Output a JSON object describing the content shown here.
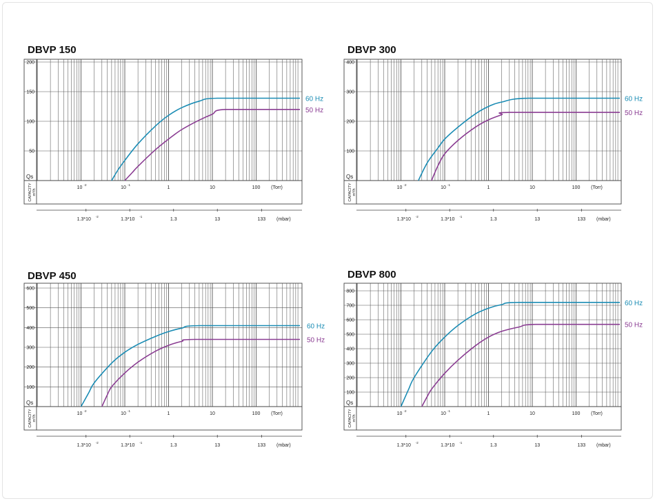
{
  "colors": {
    "hz60": "#1a8cb4",
    "hz50": "#8a3c92",
    "grid": "#555555",
    "frame": "#444444",
    "text": "#222222"
  },
  "chart_data": [
    {
      "type": "line",
      "title": "DBVP 150",
      "ylabel": "Qs",
      "capacity_label": "CAPACITY",
      "capacity_unit": "m³/h",
      "x_scale": "log",
      "xlim_torr": [
        0.001,
        1000
      ],
      "ylim": [
        0,
        210
      ],
      "yticks": [
        0,
        50,
        100,
        150,
        200
      ],
      "ytick_labels": [
        "50",
        "100",
        "150",
        "200"
      ],
      "torr_ticks": [
        0.01,
        0.1,
        1,
        10,
        100
      ],
      "torr_tick_labels": [
        "10",
        "10",
        "1",
        "10",
        "100"
      ],
      "torr_tick_exps": [
        "-2",
        "-1",
        "",
        "",
        ""
      ],
      "torr_unit": "(Torr)",
      "mbar_ticks": [
        0.013,
        0.13,
        1.3,
        13,
        133
      ],
      "mbar_tick_labels": [
        "1.3*10",
        "1.3*10",
        "1.3",
        "13",
        "133"
      ],
      "mbar_tick_exps": [
        "-2",
        "-1",
        "",
        "",
        ""
      ],
      "mbar_unit": "(mbar)",
      "series": [
        {
          "name": "60 Hz",
          "x": [
            0.05,
            0.07,
            0.1,
            0.2,
            0.5,
            1,
            2,
            5,
            13,
            1000
          ],
          "values": [
            0,
            18,
            34,
            62,
            92,
            110,
            123,
            134,
            139,
            139
          ]
        },
        {
          "name": "50 Hz",
          "x": [
            0.1,
            0.15,
            0.2,
            0.5,
            1,
            2,
            5,
            10,
            20,
            1000
          ],
          "values": [
            0,
            14,
            24,
            52,
            70,
            86,
            102,
            112,
            120,
            120
          ]
        }
      ]
    },
    {
      "type": "line",
      "title": "DBVP 300",
      "ylabel": "Qs",
      "capacity_label": "CAPACITY",
      "capacity_unit": "m³/h",
      "x_scale": "log",
      "xlim_torr": [
        0.001,
        1000
      ],
      "ylim": [
        0,
        420
      ],
      "yticks": [
        0,
        100,
        200,
        300,
        400
      ],
      "ytick_labels": [
        "100",
        "200",
        "300",
        "400"
      ],
      "torr_ticks": [
        0.01,
        0.1,
        1,
        10,
        100
      ],
      "torr_tick_labels": [
        "10",
        "10",
        "1",
        "10",
        "100"
      ],
      "torr_tick_exps": [
        "-2",
        "-1",
        "",
        "",
        ""
      ],
      "torr_unit": "(Torr)",
      "mbar_ticks": [
        0.013,
        0.13,
        1.3,
        13,
        133
      ],
      "mbar_tick_labels": [
        "1.3*10",
        "1.3*10",
        "1.3",
        "13",
        "133"
      ],
      "mbar_tick_exps": [
        "-2",
        "-1",
        "",
        "",
        ""
      ],
      "mbar_unit": "(mbar)",
      "series": [
        {
          "name": "60 Hz",
          "x": [
            0.025,
            0.04,
            0.07,
            0.1,
            0.2,
            0.5,
            1,
            2,
            8,
            1000
          ],
          "values": [
            0,
            60,
            110,
            140,
            180,
            225,
            250,
            265,
            278,
            278
          ]
        },
        {
          "name": "50 Hz",
          "x": [
            0.05,
            0.07,
            0.1,
            0.2,
            0.5,
            1,
            2,
            3,
            1000
          ],
          "values": [
            0,
            50,
            90,
            135,
            180,
            205,
            222,
            230,
            230
          ]
        }
      ]
    },
    {
      "type": "line",
      "title": "DBVP 450",
      "ylabel": "Qs",
      "capacity_label": "CAPACITY",
      "capacity_unit": "m³/h",
      "x_scale": "log",
      "xlim_torr": [
        0.001,
        1000
      ],
      "ylim": [
        0,
        610
      ],
      "yticks": [
        0,
        100,
        200,
        300,
        400,
        500,
        600
      ],
      "ytick_labels": [
        "100",
        "200",
        "300",
        "400",
        "500",
        "600"
      ],
      "torr_ticks": [
        0.01,
        0.1,
        1,
        10,
        100
      ],
      "torr_tick_labels": [
        "10",
        "10",
        "1",
        "10",
        "100"
      ],
      "torr_tick_exps": [
        "-2",
        "-1",
        "",
        "",
        ""
      ],
      "torr_unit": "(Torr)",
      "mbar_ticks": [
        0.013,
        0.13,
        1.3,
        13,
        133
      ],
      "mbar_tick_labels": [
        "1.3*10",
        "1.3*10",
        "1.3",
        "13",
        "133"
      ],
      "mbar_tick_exps": [
        "-2",
        "-1",
        "",
        "",
        ""
      ],
      "mbar_unit": "(mbar)",
      "series": [
        {
          "name": "60 Hz",
          "x": [
            0.01,
            0.015,
            0.02,
            0.05,
            0.1,
            0.2,
            0.5,
            1,
            2,
            5,
            1000
          ],
          "values": [
            0,
            70,
            120,
            220,
            275,
            315,
            355,
            380,
            397,
            410,
            410
          ]
        },
        {
          "name": "50 Hz",
          "x": [
            0.03,
            0.04,
            0.05,
            0.1,
            0.2,
            0.5,
            1,
            2,
            4,
            1000
          ],
          "values": [
            0,
            60,
            100,
            170,
            225,
            280,
            310,
            330,
            340,
            340
          ]
        }
      ]
    },
    {
      "type": "line",
      "title": "DBVP 800",
      "ylabel": "Qs",
      "capacity_label": "CAPACITY",
      "capacity_unit": "m³/h",
      "x_scale": "log",
      "xlim_torr": [
        0.001,
        1000
      ],
      "ylim": [
        0,
        830
      ],
      "yticks": [
        0,
        100,
        200,
        300,
        400,
        500,
        600,
        700,
        800
      ],
      "ytick_labels": [
        "100",
        "200",
        "300",
        "400",
        "500",
        "600",
        "700",
        "800"
      ],
      "torr_ticks": [
        0.01,
        0.1,
        1,
        10,
        100
      ],
      "torr_tick_labels": [
        "10",
        "10",
        "1",
        "10",
        "100"
      ],
      "torr_tick_exps": [
        "-2",
        "-1",
        "",
        "",
        ""
      ],
      "torr_unit": "(Torr)",
      "mbar_ticks": [
        0.013,
        0.13,
        1.3,
        13,
        133
      ],
      "mbar_tick_labels": [
        "1.3*10",
        "1.3*10",
        "1.3",
        "13",
        "133"
      ],
      "mbar_tick_exps": [
        "-2",
        "-1",
        "",
        "",
        ""
      ],
      "mbar_unit": "(mbar)",
      "series": [
        {
          "name": "60 Hz",
          "x": [
            0.01,
            0.015,
            0.02,
            0.05,
            0.1,
            0.2,
            0.5,
            1,
            2,
            5,
            1000
          ],
          "values": [
            0,
            120,
            200,
            380,
            480,
            560,
            640,
            680,
            705,
            720,
            720
          ]
        },
        {
          "name": "50 Hz",
          "x": [
            0.03,
            0.04,
            0.05,
            0.1,
            0.2,
            0.5,
            1,
            2,
            5,
            12,
            1000
          ],
          "values": [
            0,
            70,
            120,
            230,
            320,
            420,
            480,
            520,
            550,
            568,
            568
          ]
        }
      ]
    }
  ]
}
